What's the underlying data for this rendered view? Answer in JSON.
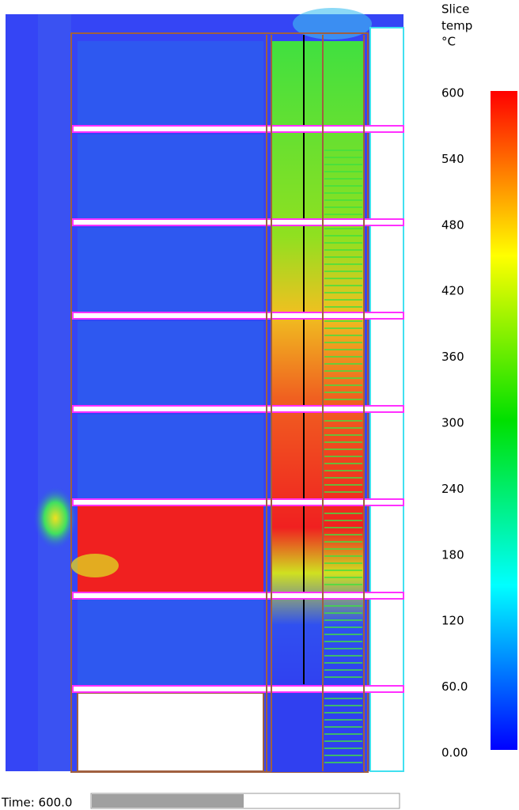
{
  "colorbar": {
    "title": [
      "Slice",
      "temp",
      "°C"
    ],
    "ticks": [
      "600",
      "540",
      "480",
      "420",
      "360",
      "300",
      "240",
      "180",
      "120",
      "60.0",
      "0.00"
    ]
  },
  "time_label": "Time: 600.0"
}
